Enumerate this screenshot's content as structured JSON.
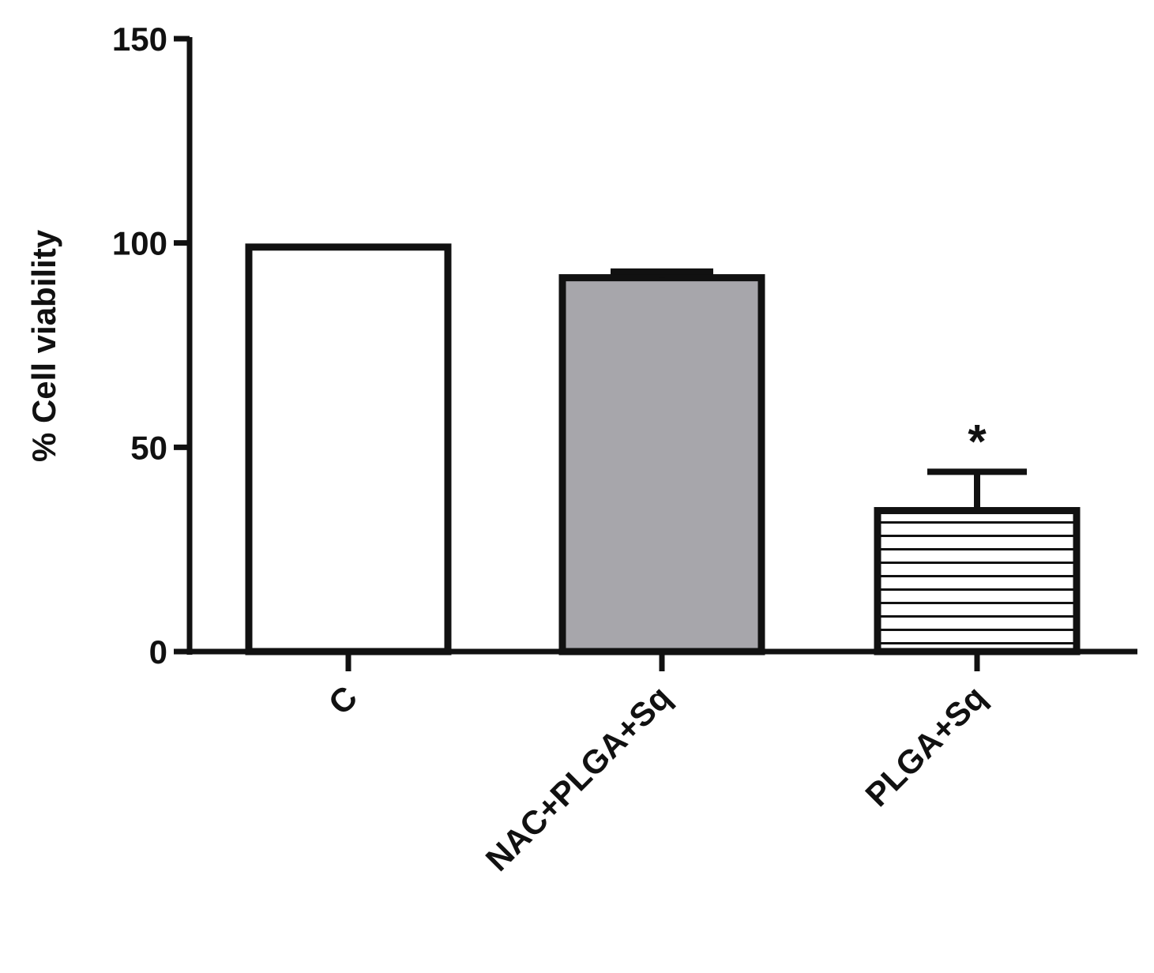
{
  "chart_data": {
    "type": "bar",
    "categories": [
      "C",
      "NAC+PLGA+Sq",
      "PLGA+Sq"
    ],
    "values": [
      99,
      91.5,
      34.5
    ],
    "errors": [
      0,
      1.5,
      9.5
    ],
    "fills": [
      "#ffffff",
      "#a7a6ab",
      "hatch-horizontal"
    ],
    "annotations": [
      "",
      "",
      "*"
    ],
    "title": "",
    "xlabel": "",
    "ylabel": "% Cell viability",
    "ylim": [
      0,
      150
    ],
    "yticks": [
      0,
      50,
      100,
      150
    ],
    "grid": false,
    "legend": "none"
  }
}
